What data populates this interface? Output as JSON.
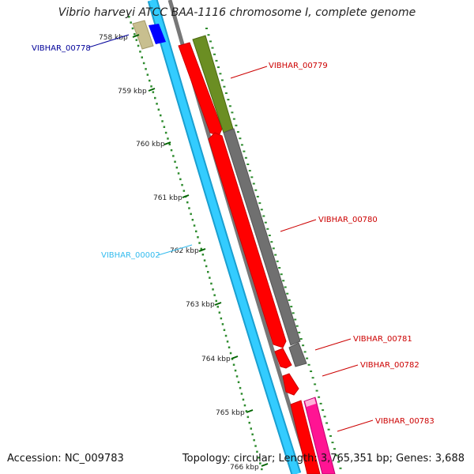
{
  "title": "Vibrio harveyi ATCC BAA-1116 chromosome I, complete genome",
  "accession_label": "Accession: NC_009783",
  "stats_label": "Topology: circular; Length: 3,765,351 bp; Genes: 3,688",
  "colors": {
    "red": "#ff0000",
    "dark_red": "#cc0000",
    "olive": "#6b8e23",
    "gray": "#707070",
    "cyan": "#33ccff",
    "blue": "#0000ff",
    "khaki": "#c8bf8f",
    "pink": "#ff1493",
    "navy": "#000099",
    "tick_green": "#006400"
  },
  "kbp_ticks": [
    "758 kbp",
    "759 kbp",
    "760 kbp",
    "761 kbp",
    "762 kbp",
    "763 kbp",
    "764 kbp",
    "765 kbp",
    "766 kbp"
  ],
  "gene_labels": [
    {
      "text": "VIBHAR_00778",
      "color": "#000099"
    },
    {
      "text": "VIBHAR_00779",
      "color": "#cc0000"
    },
    {
      "text": "VIBHAR_00780",
      "color": "#cc0000"
    },
    {
      "text": "VIBHAR_00002",
      "color": "#33bbee"
    },
    {
      "text": "VIBHAR_00781",
      "color": "#cc0000"
    },
    {
      "text": "VIBHAR_00782",
      "color": "#cc0000"
    },
    {
      "text": "VIBHAR_00783",
      "color": "#cc0000"
    }
  ]
}
